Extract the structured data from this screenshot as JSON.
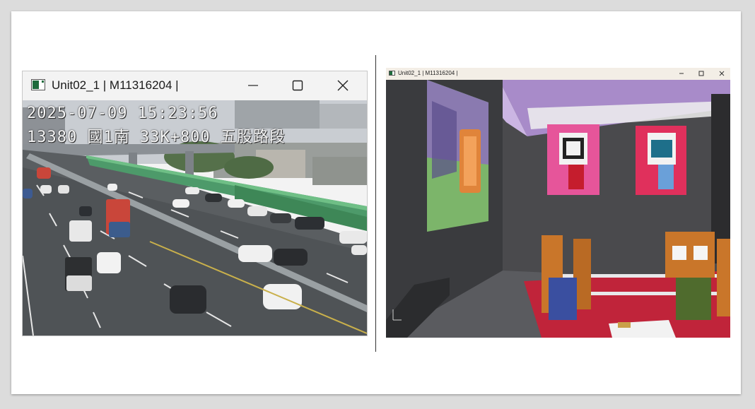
{
  "left_window": {
    "title": "Unit02_1 | M11316204 |",
    "camera_overlay": {
      "timestamp": "2025-07-09 15:23:56",
      "location": "13380 國1南 33K+800 五股路段"
    }
  },
  "right_window": {
    "title": "Unit02_1 | M11316204 |"
  },
  "colors": {
    "titlebar": "#f3f3f3",
    "room_wall": "#4a4a4d",
    "ceiling": "#a88bc9",
    "poster_pink": "#e6559a",
    "poster_red": "#e0305c",
    "couch_red": "#c0243a"
  },
  "icons": {
    "app": "app-window-icon",
    "minimize": "minimize-icon",
    "maximize": "maximize-icon",
    "close": "close-icon"
  }
}
